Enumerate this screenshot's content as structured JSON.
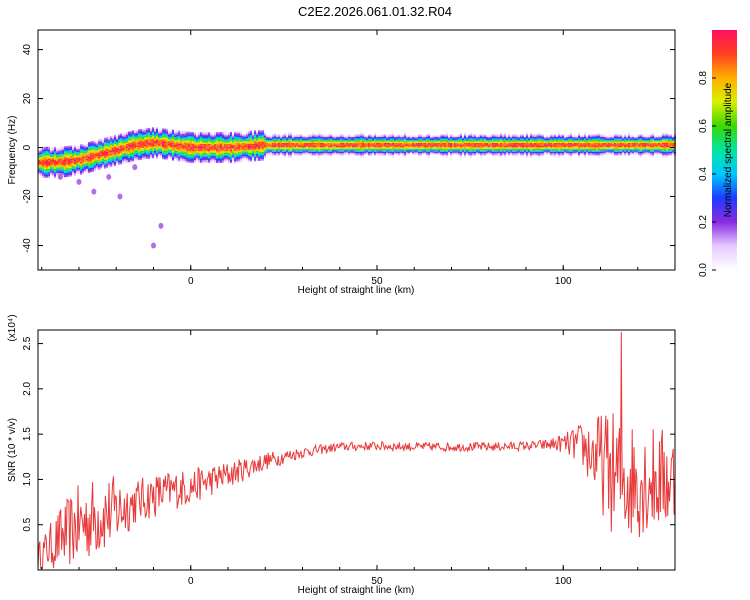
{
  "title": "C2E2.2026.061.01.32.R04",
  "chart_data": [
    {
      "type": "heatmap",
      "xlabel": "Height of straight line (km)",
      "ylabel": "Frequency (Hz)",
      "xlim": [
        -41,
        130
      ],
      "ylim": [
        -50,
        48
      ],
      "xticks": [
        0,
        50,
        100
      ],
      "yticks": [
        -40,
        -20,
        0,
        20,
        40
      ],
      "colorbar": {
        "label": "Normalized spectral amplitude",
        "range": [
          0,
          1
        ],
        "ticks": [
          "0.0",
          "0.2",
          "0.4",
          "0.6",
          "0.8"
        ],
        "tick_values": [
          0.0,
          0.2,
          0.4,
          0.6,
          0.8
        ],
        "colormap": "white-purple-blue-cyan-green-yellow-orange-red"
      },
      "ridge": {
        "description_points_x": [
          -41,
          -35,
          -30,
          -25,
          -20,
          -15,
          -10,
          -5,
          0,
          10,
          20,
          40,
          60,
          80,
          100,
          120,
          130
        ],
        "frequency": [
          -6,
          -6,
          -5,
          -3,
          -1,
          1,
          2,
          1,
          0,
          0,
          1,
          1,
          1,
          1,
          1,
          1,
          1
        ]
      }
    },
    {
      "type": "line",
      "xlabel": "Height of straight line (km)",
      "ylabel": "SNR (10 * v/v)",
      "scale_label": "(x10⁴)",
      "xlim": [
        -41,
        130
      ],
      "ylim": [
        0,
        2.65
      ],
      "xticks": [
        0,
        50,
        100
      ],
      "yticks": [
        "0.5",
        "1.0",
        "1.5",
        "2.0",
        "2.5"
      ],
      "ytick_values": [
        0.5,
        1.0,
        1.5,
        2.0,
        2.5
      ],
      "color": "#e83a3a",
      "envelope": {
        "x": [
          -41,
          -35,
          -30,
          -25,
          -20,
          -15,
          -10,
          -5,
          0,
          10,
          20,
          30,
          40,
          50,
          60,
          70,
          80,
          90,
          95,
          100,
          105,
          110,
          115,
          120,
          125,
          130
        ],
        "mean": [
          0.15,
          0.35,
          0.5,
          0.6,
          0.65,
          0.75,
          0.82,
          0.88,
          0.92,
          1.05,
          1.2,
          1.3,
          1.36,
          1.37,
          1.36,
          1.36,
          1.36,
          1.37,
          1.38,
          1.4,
          1.38,
          1.2,
          1.0,
          1.0,
          1.0,
          1.0
        ],
        "amplitude": [
          0.15,
          0.35,
          0.45,
          0.45,
          0.4,
          0.25,
          0.25,
          0.22,
          0.2,
          0.15,
          0.1,
          0.06,
          0.05,
          0.05,
          0.05,
          0.05,
          0.05,
          0.05,
          0.06,
          0.1,
          0.25,
          0.55,
          0.75,
          0.65,
          0.6,
          0.55
        ]
      },
      "peak": {
        "x": 115.5,
        "y": 2.63
      }
    }
  ]
}
